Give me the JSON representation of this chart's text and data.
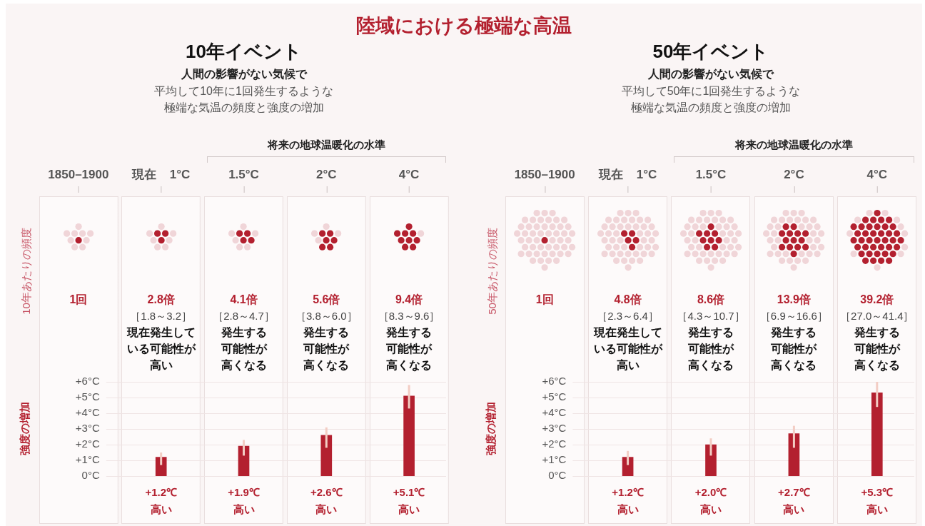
{
  "chart_data": [
    {
      "type": "other",
      "title": "陸域における極端な高温"
    },
    {
      "type": "other",
      "title": "10年イベント",
      "subtitle": "人間の影響がない気候で平均して10年に1回発生するような極端な気温の頻度と強度の増加",
      "ylabel": "10年あたりの頻度",
      "categories": [
        "1850–1900",
        "現在 1°C",
        "1.5°C",
        "2°C",
        "4°C"
      ],
      "values": [
        1,
        2.8,
        4.1,
        5.6,
        9.4
      ],
      "color": "#b3202f",
      "value_labels": [
        "1回",
        "2.8倍",
        "4.1倍",
        "5.6倍",
        "9.4倍"
      ],
      "annotations": [
        "将来の地球温暖化の水準",
        {
          "text": "［1.8～3.2］",
          "x": "現在 1°C"
        },
        {
          "text": "現在発生している可能性が高い",
          "x": "現在 1°C"
        },
        {
          "text": "［2.8～4.7］",
          "x": "1.5°C"
        },
        {
          "text": "発生する可能性が高くなる",
          "x": "1.5°C"
        },
        {
          "text": "［3.8～6.0］",
          "x": "2°C"
        },
        {
          "text": "発生する可能性が高くなる",
          "x": "2°C"
        },
        {
          "text": "［8.3～9.6］",
          "x": "4°C"
        },
        {
          "text": "発生する可能性が高くなる",
          "x": "4°C"
        }
      ]
    },
    {
      "type": "bar",
      "ylabel": "強度の増加",
      "categories": [
        null,
        null,
        null,
        null
      ],
      "values": [
        1.2,
        1.9,
        2.6,
        5.1
      ],
      "errors": [
        [
          0.7,
          1.5
        ],
        [
          1.3,
          2.3
        ],
        [
          1.8,
          3.1
        ],
        [
          4.3,
          5.8
        ]
      ],
      "color": "#b3202f",
      "ylim": [
        0,
        6
      ],
      "yticks": [
        {
          "value": 0,
          "label": "0°C"
        },
        {
          "value": 1,
          "label": "+1°C"
        },
        {
          "value": 2,
          "label": "+2°C"
        },
        {
          "value": 3,
          "label": "+3°C"
        },
        {
          "value": 4,
          "label": "+4°C"
        },
        {
          "value": 5,
          "label": "+5°C"
        },
        {
          "value": 6,
          "label": "+6°C"
        }
      ],
      "grid": "y",
      "tick_labels": "y",
      "value_labels": [
        "+1.2℃\n高い",
        "+1.9℃\n高い",
        "+2.6℃\n高い",
        "+5.1℃\n高い"
      ]
    },
    {
      "type": "other",
      "title": "50年イベント",
      "subtitle": "人間の影響がない気候で平均して50年に1回発生するような極端な気温の頻度と強度の増加",
      "ylabel": "50年あたりの頻度",
      "categories": [
        "1850–1900",
        "現在 1°C",
        "1.5°C",
        "2°C",
        "4°C"
      ],
      "values": [
        1,
        4.8,
        8.6,
        13.9,
        39.2
      ],
      "color": "#b3202f",
      "value_labels": [
        "1回",
        "4.8倍",
        "8.6倍",
        "13.9倍",
        "39.2倍"
      ],
      "annotations": [
        "将来の地球温暖化の水準",
        {
          "text": "［2.3～6.4］",
          "x": "現在 1°C"
        },
        {
          "text": "現在発生している可能性が高い",
          "x": "現在 1°C"
        },
        {
          "text": "［4.3～10.7］",
          "x": "1.5°C"
        },
        {
          "text": "発生する可能性が高くなる",
          "x": "1.5°C"
        },
        {
          "text": "［6.9～16.6］",
          "x": "2°C"
        },
        {
          "text": "発生する可能性が高くなる",
          "x": "2°C"
        },
        {
          "text": "［27.0～41.4］",
          "x": "4°C"
        },
        {
          "text": "発生する可能性が高くなる",
          "x": "4°C"
        }
      ]
    },
    {
      "type": "bar",
      "ylabel": "強度の増加",
      "categories": [
        null,
        null,
        null,
        null
      ],
      "values": [
        1.2,
        2.0,
        2.7,
        5.3
      ],
      "errors": [
        [
          0.7,
          1.6
        ],
        [
          1.3,
          2.4
        ],
        [
          1.8,
          3.2
        ],
        [
          4.4,
          6.0
        ]
      ],
      "color": "#b3202f",
      "ylim": [
        0,
        6
      ],
      "yticks": [
        {
          "value": 0,
          "label": "0°C"
        },
        {
          "value": 1,
          "label": "+1°C"
        },
        {
          "value": 2,
          "label": "+2°C"
        },
        {
          "value": 3,
          "label": "+3°C"
        },
        {
          "value": 4,
          "label": "+4°C"
        },
        {
          "value": 5,
          "label": "+5°C"
        },
        {
          "value": 6,
          "label": "+6°C"
        }
      ],
      "grid": "y",
      "tick_labels": "y",
      "value_labels": [
        "+1.2℃\n高い",
        "+2.0℃\n高い",
        "+2.7℃\n高い",
        "+5.3℃\n高い"
      ]
    }
  ]
}
